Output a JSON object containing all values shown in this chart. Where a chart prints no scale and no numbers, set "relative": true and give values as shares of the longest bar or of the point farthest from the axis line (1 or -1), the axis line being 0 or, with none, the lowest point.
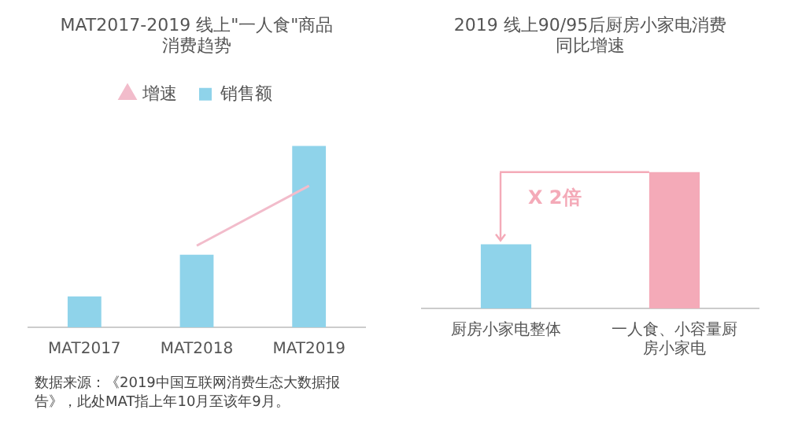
{
  "chart_data": [
    {
      "type": "bar",
      "title": "MAT2017-2019 线上\"一人食\"商品消费趋势",
      "categories": [
        "MAT2017",
        "MAT2018",
        "MAT2019"
      ],
      "relative": true,
      "legend": "top",
      "series": [
        {
          "name": "销售额",
          "color": "#8fd3ea",
          "values": [
            0.17,
            0.4,
            1
          ]
        },
        {
          "name": "增速",
          "type": "line",
          "color": "#f2bccb",
          "marker": "none",
          "values": [
            null,
            0.45,
            0.78
          ]
        }
      ],
      "annotations": [
        "数据来源：《2019中国互联网消费生态大数据报告》，此处MAT指上年10月至该年9月。"
      ]
    },
    {
      "type": "bar",
      "title": "2019 线上90/95后厨房小家电消费同比增速",
      "categories": [
        "厨房小家电整体",
        "一人食、小容量厨房小家电"
      ],
      "relative": true,
      "values": [
        0.47,
        1
      ],
      "colors": [
        "#8fd3ea",
        "#f4aab8"
      ],
      "ref_lines": [
        {
          "axis": "y",
          "value": 1,
          "label": "X 2倍",
          "color": "#f4aab8"
        }
      ]
    }
  ]
}
